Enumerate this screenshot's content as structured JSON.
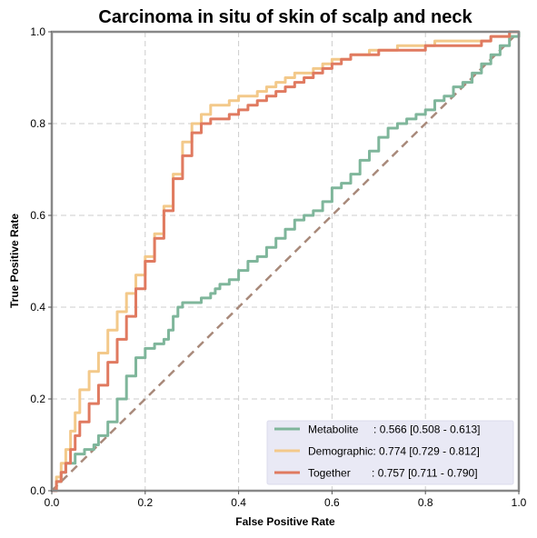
{
  "chart_data": {
    "type": "line",
    "title": "Carcinoma in situ of skin of scalp and neck",
    "xlabel": "False Positive Rate",
    "ylabel": "True Positive Rate",
    "xlim": [
      0,
      1
    ],
    "ylim": [
      0,
      1
    ],
    "xticks": [
      "0.0",
      "0.2",
      "0.4",
      "0.6",
      "0.8",
      "1.0"
    ],
    "yticks": [
      "0.0",
      "0.2",
      "0.4",
      "0.6",
      "0.8",
      "1.0"
    ],
    "grid": true,
    "legend_position": "lower-right",
    "series": [
      {
        "name": "Metabolite",
        "legend_label": "Metabolite     : 0.566 [0.508 - 0.613]",
        "color": "#7fb69b",
        "x": [
          0,
          0.01,
          0.02,
          0.03,
          0.05,
          0.07,
          0.09,
          0.1,
          0.12,
          0.14,
          0.16,
          0.18,
          0.2,
          0.22,
          0.24,
          0.25,
          0.26,
          0.27,
          0.28,
          0.3,
          0.32,
          0.34,
          0.35,
          0.36,
          0.38,
          0.4,
          0.42,
          0.44,
          0.46,
          0.48,
          0.5,
          0.52,
          0.54,
          0.56,
          0.58,
          0.6,
          0.62,
          0.64,
          0.66,
          0.68,
          0.7,
          0.72,
          0.74,
          0.76,
          0.78,
          0.8,
          0.82,
          0.84,
          0.86,
          0.88,
          0.9,
          0.92,
          0.94,
          0.96,
          0.98,
          1
        ],
        "y": [
          0,
          0.02,
          0.04,
          0.06,
          0.08,
          0.09,
          0.1,
          0.12,
          0.15,
          0.2,
          0.25,
          0.29,
          0.31,
          0.32,
          0.33,
          0.35,
          0.38,
          0.4,
          0.41,
          0.41,
          0.42,
          0.43,
          0.44,
          0.45,
          0.46,
          0.48,
          0.5,
          0.51,
          0.53,
          0.55,
          0.57,
          0.59,
          0.6,
          0.61,
          0.63,
          0.66,
          0.67,
          0.69,
          0.72,
          0.74,
          0.77,
          0.79,
          0.8,
          0.81,
          0.82,
          0.83,
          0.85,
          0.86,
          0.88,
          0.89,
          0.91,
          0.93,
          0.95,
          0.97,
          0.99,
          1
        ]
      },
      {
        "name": "Demographic",
        "legend_label": "Demographic: 0.774 [0.729 - 0.812]",
        "color": "#f3c98a",
        "x": [
          0,
          0.01,
          0.02,
          0.03,
          0.04,
          0.05,
          0.06,
          0.08,
          0.1,
          0.12,
          0.14,
          0.16,
          0.18,
          0.2,
          0.22,
          0.24,
          0.26,
          0.28,
          0.3,
          0.32,
          0.34,
          0.36,
          0.38,
          0.4,
          0.42,
          0.44,
          0.46,
          0.48,
          0.5,
          0.52,
          0.54,
          0.56,
          0.58,
          0.6,
          0.62,
          0.64,
          0.66,
          0.68,
          0.7,
          0.72,
          0.74,
          0.76,
          0.78,
          0.8,
          0.82,
          0.84,
          0.86,
          0.88,
          0.9,
          0.92,
          0.94,
          0.96,
          0.98,
          1
        ],
        "y": [
          0,
          0.03,
          0.06,
          0.09,
          0.13,
          0.17,
          0.22,
          0.26,
          0.3,
          0.35,
          0.39,
          0.43,
          0.47,
          0.51,
          0.56,
          0.62,
          0.69,
          0.76,
          0.8,
          0.82,
          0.84,
          0.84,
          0.85,
          0.86,
          0.86,
          0.87,
          0.88,
          0.89,
          0.9,
          0.91,
          0.91,
          0.92,
          0.93,
          0.94,
          0.94,
          0.95,
          0.95,
          0.96,
          0.96,
          0.96,
          0.97,
          0.97,
          0.97,
          0.97,
          0.98,
          0.98,
          0.98,
          0.98,
          0.98,
          0.98,
          0.99,
          0.99,
          1,
          1
        ]
      },
      {
        "name": "Together",
        "legend_label": "Together       : 0.757 [0.711 - 0.790]",
        "color": "#e07a60",
        "x": [
          0,
          0.01,
          0.02,
          0.03,
          0.04,
          0.05,
          0.06,
          0.08,
          0.1,
          0.12,
          0.14,
          0.16,
          0.18,
          0.2,
          0.22,
          0.24,
          0.26,
          0.28,
          0.3,
          0.32,
          0.34,
          0.36,
          0.38,
          0.4,
          0.42,
          0.44,
          0.46,
          0.48,
          0.5,
          0.52,
          0.54,
          0.56,
          0.58,
          0.6,
          0.62,
          0.64,
          0.66,
          0.68,
          0.7,
          0.72,
          0.74,
          0.76,
          0.78,
          0.8,
          0.82,
          0.84,
          0.86,
          0.88,
          0.9,
          0.92,
          0.94,
          0.96,
          0.98,
          1
        ],
        "y": [
          0,
          0.02,
          0.04,
          0.06,
          0.09,
          0.12,
          0.15,
          0.19,
          0.23,
          0.28,
          0.33,
          0.38,
          0.44,
          0.5,
          0.55,
          0.61,
          0.68,
          0.73,
          0.78,
          0.8,
          0.81,
          0.81,
          0.82,
          0.83,
          0.84,
          0.85,
          0.86,
          0.87,
          0.88,
          0.89,
          0.9,
          0.91,
          0.92,
          0.93,
          0.94,
          0.95,
          0.95,
          0.95,
          0.96,
          0.96,
          0.96,
          0.96,
          0.96,
          0.97,
          0.97,
          0.97,
          0.97,
          0.97,
          0.97,
          0.98,
          0.99,
          0.99,
          1,
          1
        ]
      },
      {
        "name": "Chance",
        "legend": false,
        "color": "#a8897a",
        "style": "dashed",
        "x": [
          0,
          1
        ],
        "y": [
          0,
          1
        ]
      }
    ]
  },
  "colors": {
    "legend_background": "#e9e9f5",
    "axes_frame": "#888888",
    "grid": "#cccccc"
  }
}
